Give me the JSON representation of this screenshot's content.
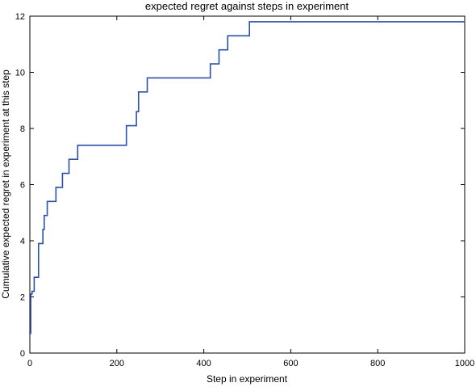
{
  "chart_data": {
    "type": "line",
    "title": "expected regret against steps in experiment",
    "xlabel": "Step in experiment",
    "ylabel": "Cumulative expected regret in experiment at this step",
    "xlim": [
      0,
      1000
    ],
    "ylim": [
      0,
      12
    ],
    "xticks": [
      0,
      200,
      400,
      600,
      800,
      1000
    ],
    "yticks": [
      0,
      2,
      4,
      6,
      8,
      10,
      12
    ],
    "grid": false,
    "line_color": "#2b4faa",
    "series": [
      {
        "step_style": "post",
        "x": [
          0,
          2,
          5,
          10,
          20,
          30,
          33,
          36,
          40,
          60,
          75,
          90,
          110,
          222,
          245,
          250,
          255,
          270,
          415,
          435,
          455,
          505,
          1000
        ],
        "y": [
          0.7,
          2.1,
          2.2,
          2.7,
          3.9,
          4.4,
          4.9,
          4.9,
          5.4,
          5.9,
          6.4,
          6.9,
          7.4,
          8.1,
          8.6,
          9.3,
          9.3,
          9.8,
          10.3,
          10.8,
          11.3,
          11.8,
          11.8
        ]
      }
    ]
  }
}
